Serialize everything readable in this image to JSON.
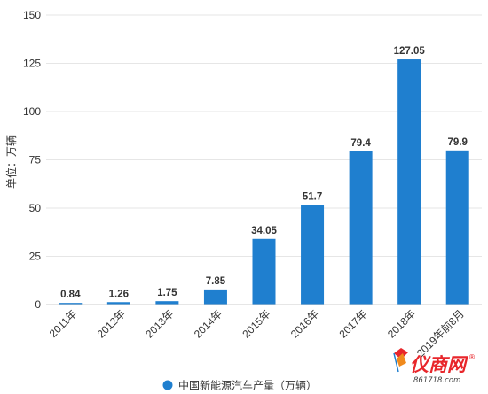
{
  "chart_data": {
    "type": "bar",
    "title": "",
    "ylabel": "单位：万辆",
    "xlabel": "",
    "ylim": [
      0,
      150
    ],
    "yticks": [
      0,
      25,
      50,
      75,
      100,
      125,
      150
    ],
    "grid": true,
    "legend_position": "bottom",
    "categories": [
      "2011年",
      "2012年",
      "2013年",
      "2014年",
      "2015年",
      "2016年",
      "2017年",
      "2018年",
      "2019年前8月"
    ],
    "series": [
      {
        "name": "中国新能源汽车产量（万辆）",
        "values": [
          0.84,
          1.26,
          1.75,
          7.85,
          34.05,
          51.7,
          79.4,
          127.05,
          79.9
        ],
        "labels": [
          "0.84",
          "1.26",
          "1.75",
          "7.85",
          "34.05",
          "51.7",
          "79.4",
          "127.05",
          "79.9"
        ],
        "color": "#1f7fcf"
      }
    ]
  },
  "watermark": {
    "brand": "仪商网",
    "registered": "®",
    "url": "861718.com"
  }
}
